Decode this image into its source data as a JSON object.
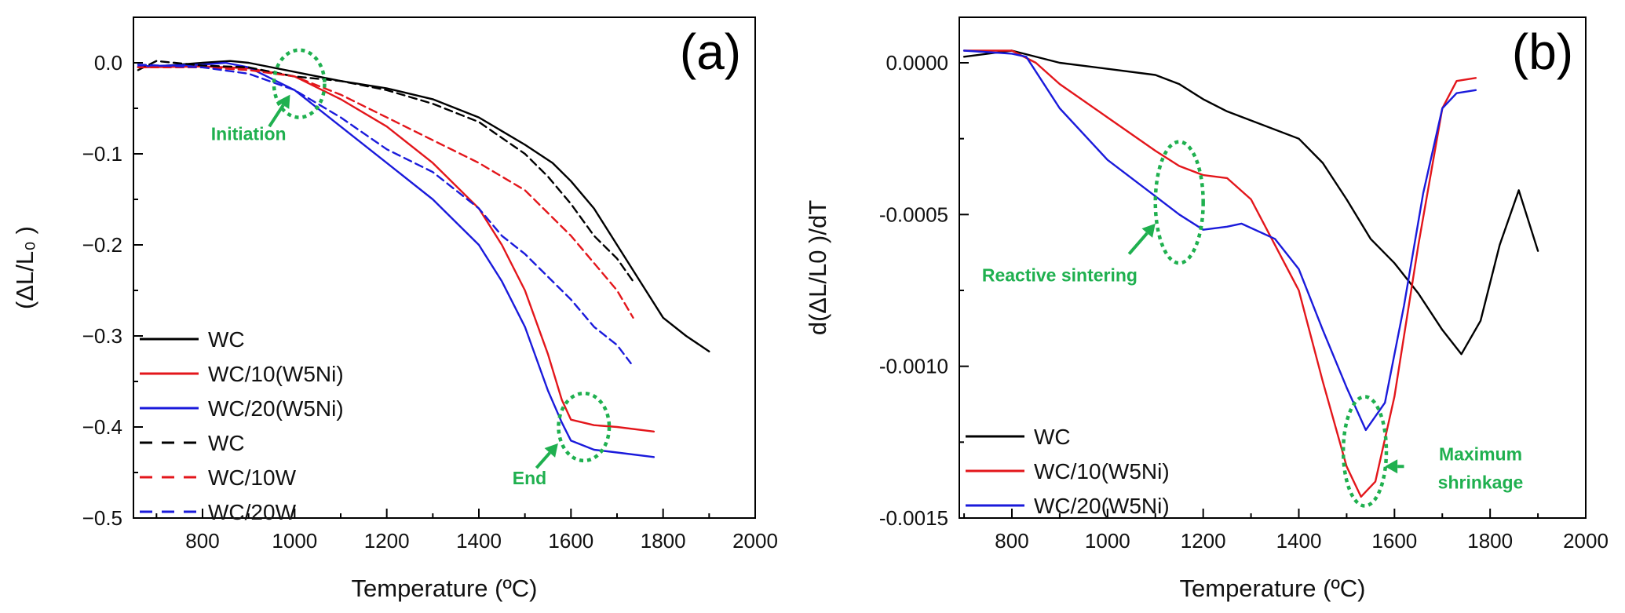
{
  "chart_data": [
    {
      "type": "line",
      "panel_label": "(a)",
      "xlabel": "Temperature (ºC)",
      "ylabel": "(ΔL/L₀ )",
      "xlim": [
        650,
        2000
      ],
      "ylim": [
        -0.5,
        0.05
      ],
      "xticks": [
        800,
        1000,
        1200,
        1400,
        1600,
        1800,
        2000
      ],
      "xtick_labels": [
        "800",
        "1000",
        "1200",
        "1400",
        "1600",
        "1800",
        "2000"
      ],
      "yticks": [
        0.0,
        -0.1,
        -0.2,
        -0.3,
        -0.4,
        -0.5
      ],
      "ytick_labels": [
        "0.0",
        "−0.1",
        "−0.2",
        "−0.3",
        "−0.4",
        "−0.5"
      ],
      "legend_position": "bottom-left",
      "series": [
        {
          "name": "WC",
          "color": "#000000",
          "dash": "solid",
          "x": [
            660,
            700,
            800,
            860,
            900,
            1000,
            1100,
            1200,
            1300,
            1400,
            1500,
            1560,
            1600,
            1650,
            1700,
            1750,
            1800,
            1850,
            1900
          ],
          "y": [
            -0.005,
            -0.004,
            0.0,
            0.002,
            0.0,
            -0.01,
            -0.02,
            -0.028,
            -0.04,
            -0.06,
            -0.09,
            -0.11,
            -0.13,
            -0.16,
            -0.2,
            -0.24,
            -0.28,
            -0.3,
            -0.317
          ]
        },
        {
          "name": "WC/10(W5Ni)",
          "color": "#e3161b",
          "dash": "solid",
          "x": [
            660,
            800,
            900,
            1000,
            1100,
            1200,
            1300,
            1400,
            1450,
            1500,
            1550,
            1580,
            1600,
            1650,
            1700,
            1780
          ],
          "y": [
            -0.005,
            -0.004,
            -0.006,
            -0.015,
            -0.04,
            -0.07,
            -0.11,
            -0.16,
            -0.2,
            -0.25,
            -0.32,
            -0.37,
            -0.392,
            -0.398,
            -0.4,
            -0.405
          ]
        },
        {
          "name": "WC/20(W5Ni)",
          "color": "#1a1adb",
          "dash": "solid",
          "x": [
            660,
            800,
            850,
            900,
            1000,
            1100,
            1200,
            1300,
            1400,
            1450,
            1500,
            1550,
            1580,
            1600,
            1650,
            1700,
            1780
          ],
          "y": [
            -0.004,
            -0.002,
            0.0,
            -0.005,
            -0.03,
            -0.07,
            -0.11,
            -0.15,
            -0.2,
            -0.24,
            -0.29,
            -0.36,
            -0.395,
            -0.415,
            -0.425,
            -0.428,
            -0.433
          ]
        },
        {
          "name": "WC",
          "color": "#000000",
          "dash": "dashed",
          "x": [
            660,
            700,
            800,
            900,
            1000,
            1100,
            1200,
            1300,
            1400,
            1500,
            1550,
            1600,
            1650,
            1700,
            1735
          ],
          "y": [
            -0.008,
            0.002,
            -0.003,
            -0.005,
            -0.015,
            -0.02,
            -0.03,
            -0.045,
            -0.065,
            -0.1,
            -0.125,
            -0.155,
            -0.19,
            -0.215,
            -0.24
          ]
        },
        {
          "name": "WC/10W",
          "color": "#e3161b",
          "dash": "dashed",
          "x": [
            660,
            800,
            900,
            1000,
            1100,
            1200,
            1300,
            1400,
            1500,
            1550,
            1600,
            1650,
            1700,
            1735
          ],
          "y": [
            -0.005,
            -0.005,
            -0.008,
            -0.015,
            -0.035,
            -0.06,
            -0.085,
            -0.11,
            -0.14,
            -0.165,
            -0.19,
            -0.22,
            -0.25,
            -0.28
          ]
        },
        {
          "name": "WC/20W",
          "color": "#1a1adb",
          "dash": "dashed",
          "x": [
            660,
            800,
            900,
            1000,
            1100,
            1200,
            1300,
            1400,
            1450,
            1500,
            1550,
            1600,
            1650,
            1700,
            1730
          ],
          "y": [
            -0.002,
            -0.005,
            -0.012,
            -0.03,
            -0.06,
            -0.095,
            -0.12,
            -0.16,
            -0.19,
            -0.21,
            -0.235,
            -0.26,
            -0.29,
            -0.31,
            -0.33
          ]
        }
      ],
      "annotations": [
        {
          "text": "Initiation",
          "ellipse_center": [
            1010,
            -0.023
          ],
          "ellipse_radius": [
            55,
            0.037
          ],
          "text_at": [
            900,
            -0.085
          ],
          "arrow_from": [
            945,
            -0.07
          ],
          "arrow_to": [
            990,
            -0.035
          ]
        },
        {
          "text": "End",
          "ellipse_center": [
            1628,
            -0.4
          ],
          "ellipse_radius": [
            55,
            0.037
          ],
          "text_at": [
            1510,
            -0.463
          ],
          "arrow_from": [
            1525,
            -0.445
          ],
          "arrow_to": [
            1572,
            -0.418
          ]
        }
      ]
    },
    {
      "type": "line",
      "panel_label": "(b)",
      "xlabel": "Temperature (ºC)",
      "ylabel": "d(ΔL/L0 )/dT",
      "xlim": [
        690,
        2000
      ],
      "ylim": [
        -0.0015,
        0.00015
      ],
      "xticks": [
        800,
        1000,
        1200,
        1400,
        1600,
        1800,
        2000
      ],
      "xtick_labels": [
        "800",
        "1000",
        "1200",
        "1400",
        "1600",
        "1800",
        "2000"
      ],
      "yticks": [
        0.0,
        -0.0005,
        -0.001,
        -0.0015
      ],
      "ytick_labels": [
        "0.0000",
        "-0.0005",
        "-0.0010",
        "-0.0015"
      ],
      "legend_position": "bottom-left",
      "series": [
        {
          "name": "WC",
          "color": "#000000",
          "dash": "solid",
          "x": [
            700,
            800,
            900,
            1000,
            1100,
            1150,
            1200,
            1250,
            1300,
            1400,
            1450,
            1500,
            1550,
            1600,
            1650,
            1700,
            1740,
            1780,
            1820,
            1860,
            1900
          ],
          "y": [
            2e-05,
            4e-05,
            0.0,
            -2e-05,
            -4e-05,
            -7e-05,
            -0.00012,
            -0.00016,
            -0.00019,
            -0.00025,
            -0.00033,
            -0.00045,
            -0.00058,
            -0.00066,
            -0.00076,
            -0.00088,
            -0.00096,
            -0.00085,
            -0.0006,
            -0.00042,
            -0.00062
          ]
        },
        {
          "name": "WC/10(W5Ni)",
          "color": "#e3161b",
          "dash": "solid",
          "x": [
            700,
            800,
            850,
            900,
            1000,
            1100,
            1150,
            1200,
            1250,
            1300,
            1400,
            1450,
            1500,
            1530,
            1560,
            1600,
            1650,
            1700,
            1730,
            1770
          ],
          "y": [
            4e-05,
            4e-05,
            0.0,
            -7e-05,
            -0.00018,
            -0.00029,
            -0.00034,
            -0.00037,
            -0.00038,
            -0.00045,
            -0.00075,
            -0.00105,
            -0.00133,
            -0.00143,
            -0.00138,
            -0.0011,
            -0.0006,
            -0.00015,
            -6e-05,
            -5e-05
          ]
        },
        {
          "name": "WC/20(W5Ni)",
          "color": "#1a1adb",
          "dash": "solid",
          "x": [
            700,
            800,
            830,
            900,
            1000,
            1100,
            1150,
            1200,
            1250,
            1280,
            1350,
            1400,
            1450,
            1500,
            1540,
            1580,
            1620,
            1660,
            1700,
            1730,
            1770
          ],
          "y": [
            4e-05,
            3e-05,
            2e-05,
            -0.00015,
            -0.00032,
            -0.00044,
            -0.0005,
            -0.00055,
            -0.00054,
            -0.00053,
            -0.00058,
            -0.00068,
            -0.00088,
            -0.00107,
            -0.00121,
            -0.00112,
            -0.0008,
            -0.00043,
            -0.00015,
            -0.0001,
            -9e-05
          ]
        }
      ],
      "annotations": [
        {
          "text": "Reactive sintering",
          "ellipse_center": [
            1150,
            -0.00046
          ],
          "ellipse_radius": [
            50,
            0.0002
          ],
          "text_at": [
            900,
            -0.00072
          ],
          "arrow_from": [
            1045,
            -0.00063
          ],
          "arrow_to": [
            1100,
            -0.00053
          ]
        },
        {
          "text": "Maximum shrinkage",
          "ellipse_center": [
            1538,
            -0.00128
          ],
          "ellipse_radius": [
            45,
            0.00018
          ],
          "text_at": [
            1780,
            -0.00131
          ],
          "arrow_from": [
            1620,
            -0.00133
          ],
          "arrow_to": [
            1580,
            -0.00133
          ]
        }
      ]
    }
  ]
}
